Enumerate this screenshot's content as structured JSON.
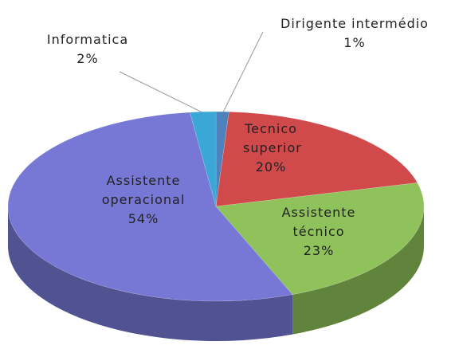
{
  "chart_data": {
    "type": "pie3d",
    "categories": [
      "Dirigente intermédio",
      "Tecnico superior",
      "Assistente técnico",
      "Assistente operacional",
      "Informatica"
    ],
    "values": [
      1,
      20,
      23,
      54,
      2
    ],
    "value_labels": [
      "1%",
      "20%",
      "23%",
      "54%",
      "2%"
    ],
    "colors": [
      "#4f81bd",
      "#d0494b",
      "#8fc25a",
      "#7778d6",
      "#3aa7d6"
    ]
  }
}
